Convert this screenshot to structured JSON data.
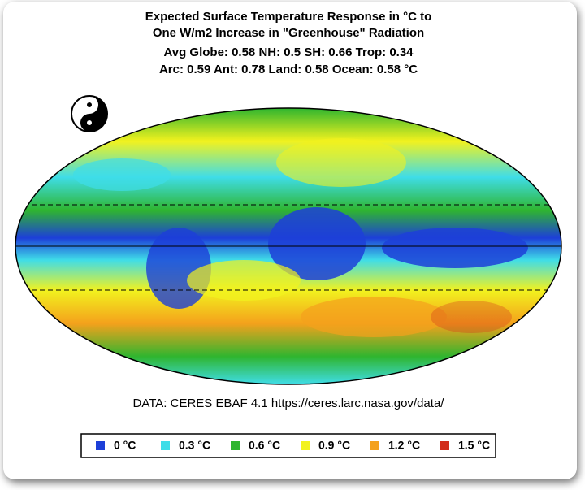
{
  "header": {
    "title_lines": [
      "Expected Surface Temperature Response in °C to",
      "One W/m2 Increase in \"Greenhouse\" Radiation"
    ],
    "stats_lines": [
      "Avg Globe: 0.58  NH: 0.5  SH: 0.66  Trop: 0.34",
      "Arc: 0.59  Ant: 0.78  Land: 0.58 Ocean: 0.58 °C"
    ]
  },
  "source": "DATA: CERES EBAF 4.1 https://ceres.larc.nasa.gov/data/",
  "legend": [
    {
      "label": "0 °C",
      "color": "#1d3fd8"
    },
    {
      "label": "0.3 °C",
      "color": "#3fdde8"
    },
    {
      "label": "0.6 °C",
      "color": "#2fb52f"
    },
    {
      "label": "0.9 °C",
      "color": "#f2f21e"
    },
    {
      "label": "1.2 °C",
      "color": "#f4a11c"
    },
    {
      "label": "1.5 °C",
      "color": "#d22c1a"
    }
  ]
}
